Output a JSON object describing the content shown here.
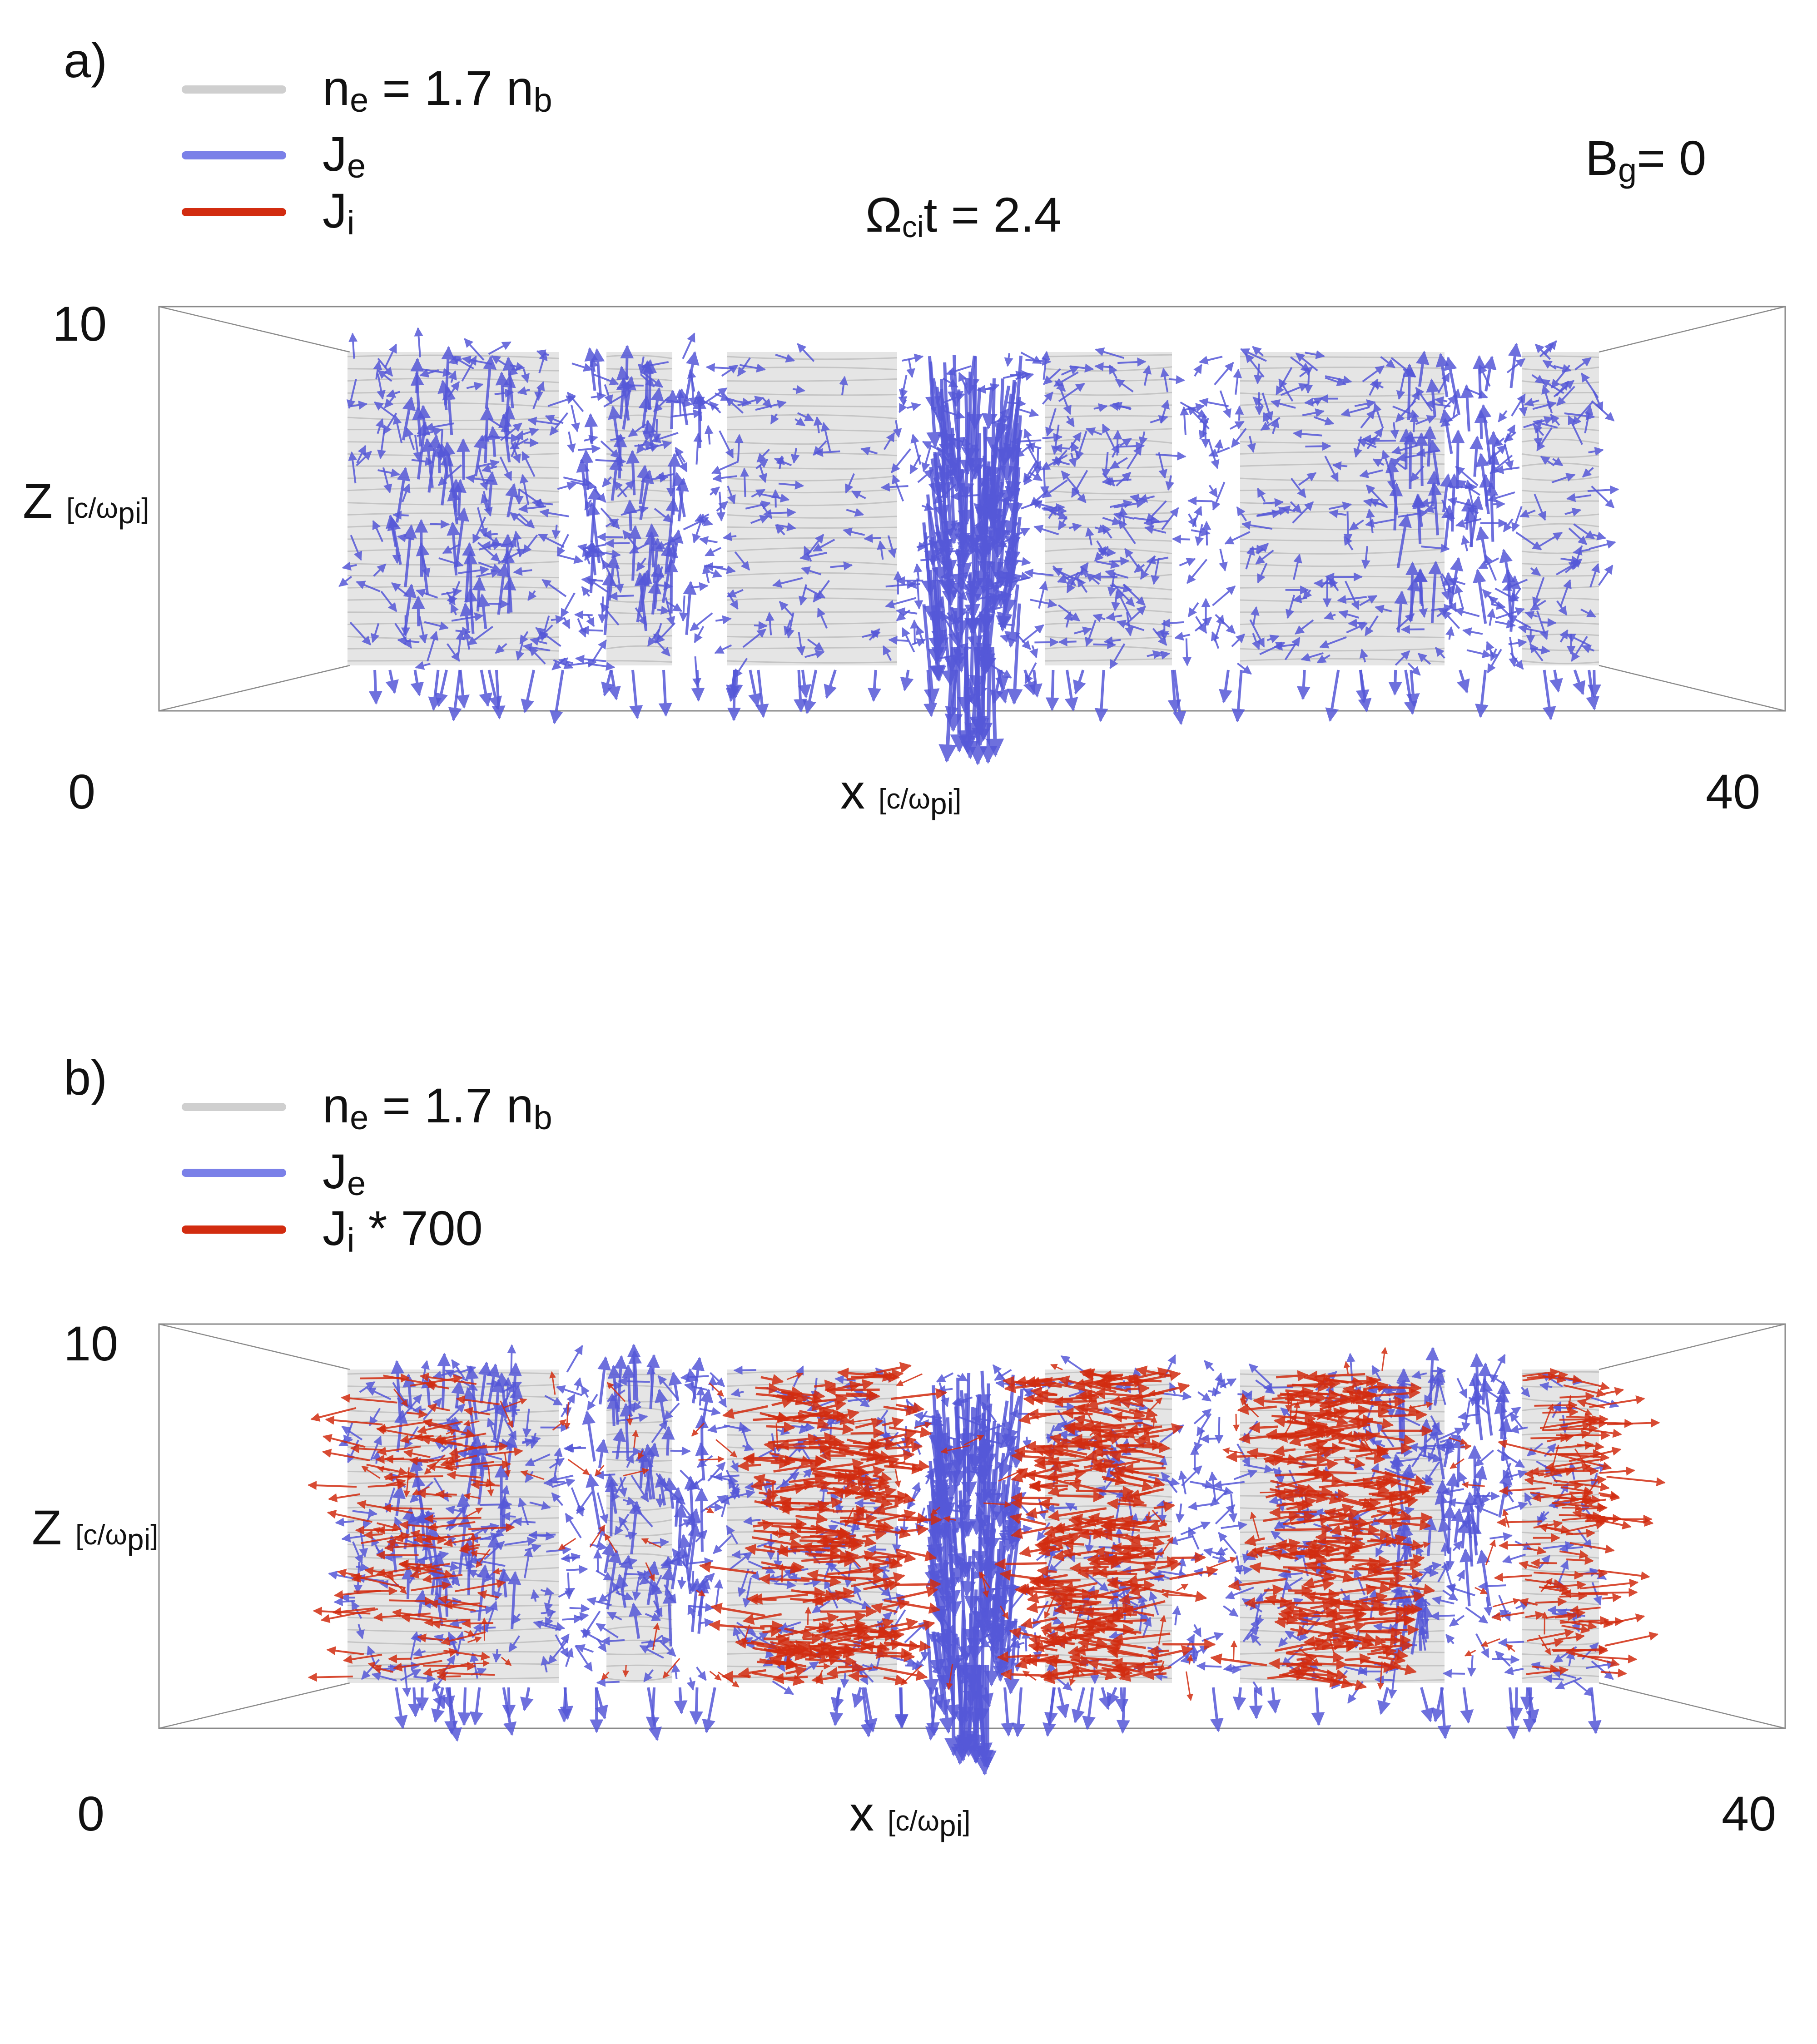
{
  "figure": {
    "panels": [
      {
        "label": "a)",
        "legend": [
          {
            "base": "n",
            "sub": "e",
            "rest": " = 1.7 n",
            "sub2": "b",
            "color": "#cfcfcf"
          },
          {
            "base": "J",
            "sub": "e",
            "rest": "",
            "sub2": "",
            "color": "#7a80e8"
          },
          {
            "base": "J",
            "sub": "i",
            "rest": "",
            "sub2": "",
            "color": "#d22c10"
          }
        ],
        "time_label": {
          "base": "Ω",
          "sub": "ci",
          "rest": "t = 2.4"
        },
        "guide_field": {
          "base": "B",
          "sub": "g",
          "rest": "= 0"
        },
        "zlabel": {
          "base": "Z",
          "units": "[c/ω",
          "units_sub": "pi",
          "units_end": "]"
        },
        "xlabel": {
          "base": "x",
          "units": "[c/ω",
          "units_sub": "pi",
          "units_end": "]"
        },
        "ztick_top": "10",
        "xtick_left": "0",
        "xtick_right": "40",
        "show_ion_arrows": false
      },
      {
        "label": "b)",
        "legend": [
          {
            "base": "n",
            "sub": "e",
            "rest": " = 1.7 n",
            "sub2": "b",
            "color": "#cfcfcf"
          },
          {
            "base": "J",
            "sub": "e",
            "rest": "",
            "sub2": "",
            "color": "#7a80e8"
          },
          {
            "base": "J",
            "sub": "i",
            "rest": " * 700",
            "sub2": "",
            "color": "#d22c10"
          }
        ],
        "zlabel": {
          "base": "Z",
          "units": "[c/ω",
          "units_sub": "pi",
          "units_end": "]"
        },
        "xlabel": {
          "base": "x",
          "units": "[c/ω",
          "units_sub": "pi",
          "units_end": "]"
        },
        "ztick_top": "10",
        "xtick_left": "0",
        "xtick_right": "40",
        "show_ion_arrows": true
      }
    ],
    "colors": {
      "density": "#cfcfcf",
      "electron_current": "#5558d8",
      "ion_current": "#d22c10",
      "box_edge": "#8a8a8a"
    }
  }
}
